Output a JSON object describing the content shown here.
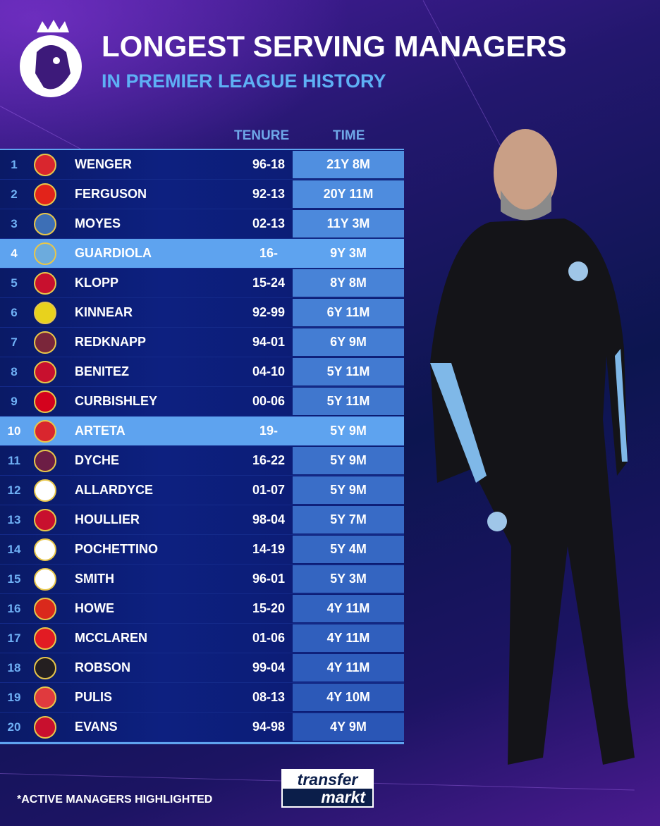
{
  "header": {
    "title": "LONGEST SERVING MANAGERS",
    "subtitle": "IN PREMIER LEAGUE HISTORY"
  },
  "columns": {
    "tenure": "TENURE",
    "time": "TIME"
  },
  "colors": {
    "highlight": "#5ea3ef",
    "time_cell": "#4f8fe0",
    "row": "#0d2080",
    "accent_text": "#5eb0f5"
  },
  "rows": [
    {
      "rank": "1",
      "club": "arsenal",
      "badge_color": "#d9262e",
      "name": "WENGER",
      "tenure": "96-18",
      "time": "21Y 8M",
      "active": false
    },
    {
      "rank": "2",
      "club": "man-utd",
      "badge_color": "#e2231a",
      "name": "FERGUSON",
      "tenure": "92-13",
      "time": "20Y 11M",
      "active": false
    },
    {
      "rank": "3",
      "club": "everton",
      "badge_color": "#3d6fb6",
      "name": "MOYES",
      "tenure": "02-13",
      "time": "11Y 3M",
      "active": false
    },
    {
      "rank": "4",
      "club": "man-city",
      "badge_color": "#6cabdd",
      "name": "GUARDIOLA",
      "tenure": "16-",
      "time": "9Y 3M",
      "active": true
    },
    {
      "rank": "5",
      "club": "liverpool",
      "badge_color": "#c8102e",
      "name": "KLOPP",
      "tenure": "15-24",
      "time": "8Y 8M",
      "active": false
    },
    {
      "rank": "6",
      "club": "wimbledon",
      "badge_color": "#e8d21d",
      "name": "KINNEAR",
      "tenure": "92-99",
      "time": "6Y 11M",
      "active": false
    },
    {
      "rank": "7",
      "club": "west-ham",
      "badge_color": "#7a263a",
      "name": "REDKNAPP",
      "tenure": "94-01",
      "time": "6Y 9M",
      "active": false
    },
    {
      "rank": "8",
      "club": "liverpool",
      "badge_color": "#c8102e",
      "name": "BENITEZ",
      "tenure": "04-10",
      "time": "5Y 11M",
      "active": false
    },
    {
      "rank": "9",
      "club": "charlton",
      "badge_color": "#d4021d",
      "name": "CURBISHLEY",
      "tenure": "00-06",
      "time": "5Y 11M",
      "active": false
    },
    {
      "rank": "10",
      "club": "arsenal",
      "badge_color": "#d9262e",
      "name": "ARTETA",
      "tenure": "19-",
      "time": "5Y 9M",
      "active": true
    },
    {
      "rank": "11",
      "club": "burnley",
      "badge_color": "#6c1d45",
      "name": "DYCHE",
      "tenure": "16-22",
      "time": "5Y 9M",
      "active": false
    },
    {
      "rank": "12",
      "club": "bolton",
      "badge_color": "#ffffff",
      "name": "ALLARDYCE",
      "tenure": "01-07",
      "time": "5Y 9M",
      "active": false
    },
    {
      "rank": "13",
      "club": "liverpool",
      "badge_color": "#c8102e",
      "name": "HOULLIER",
      "tenure": "98-04",
      "time": "5Y 7M",
      "active": false
    },
    {
      "rank": "14",
      "club": "tottenham",
      "badge_color": "#ffffff",
      "name": "POCHETTINO",
      "tenure": "14-19",
      "time": "5Y 4M",
      "active": false
    },
    {
      "rank": "15",
      "club": "derby",
      "badge_color": "#ffffff",
      "name": "SMITH",
      "tenure": "96-01",
      "time": "5Y 3M",
      "active": false
    },
    {
      "rank": "16",
      "club": "bournemouth",
      "badge_color": "#da291c",
      "name": "HOWE",
      "tenure": "15-20",
      "time": "4Y 11M",
      "active": false
    },
    {
      "rank": "17",
      "club": "middlesbrough",
      "badge_color": "#e21b23",
      "name": "MCCLAREN",
      "tenure": "01-06",
      "time": "4Y 11M",
      "active": false
    },
    {
      "rank": "18",
      "club": "newcastle",
      "badge_color": "#241f20",
      "name": "ROBSON",
      "tenure": "99-04",
      "time": "4Y 11M",
      "active": false
    },
    {
      "rank": "19",
      "club": "stoke",
      "badge_color": "#e03a3e",
      "name": "PULIS",
      "tenure": "08-13",
      "time": "4Y 10M",
      "active": false
    },
    {
      "rank": "20",
      "club": "liverpool",
      "badge_color": "#c8102e",
      "name": "EVANS",
      "tenure": "94-98",
      "time": "4Y 9M",
      "active": false
    }
  ],
  "footer": {
    "note": "*ACTIVE MANAGERS HIGHLIGHTED",
    "logo_line1": "transfer",
    "logo_line2": "markt"
  }
}
